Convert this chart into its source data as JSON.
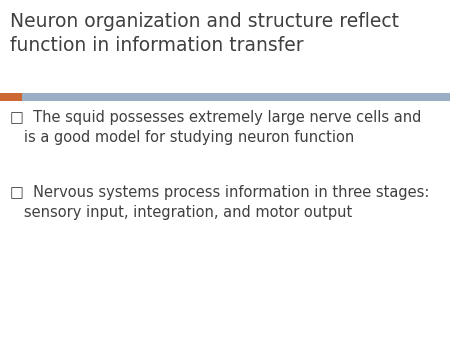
{
  "title_line1": "Neuron organization and structure reflect",
  "title_line2": "function in information transfer",
  "title_color": "#404040",
  "title_fontsize": 13.5,
  "bg_color": "#ffffff",
  "divider_orange_color": "#cc6633",
  "divider_blue_color": "#99aec4",
  "bullet_color": "#404040",
  "bullet_fontsize": 10.5,
  "bullet1_line1": "□  The squid possesses extremely large nerve cells and",
  "bullet1_line2": "   is a good model for studying neuron function",
  "bullet2_line1": "□  Nervous systems process information in three stages:",
  "bullet2_line2": "   sensory input, integration, and motor output"
}
